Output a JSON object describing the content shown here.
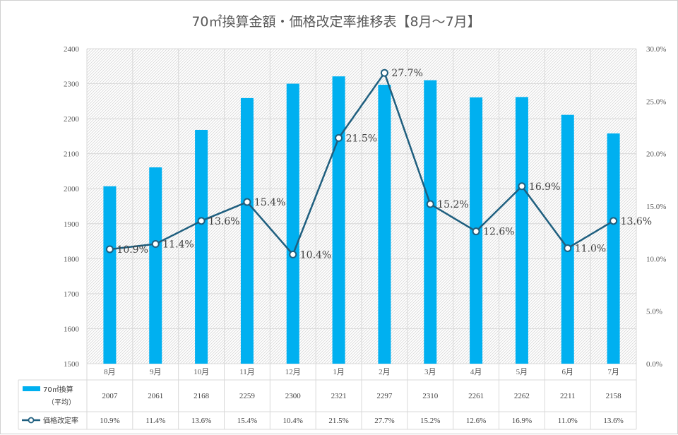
{
  "colors": {
    "bar": "#00B0F0",
    "line": "#1F5F7F",
    "grid": "#d9d9d9",
    "hatch": "#d6d6d6",
    "text": "#595959"
  },
  "chart_data": {
    "type": "bar",
    "title": "70㎡換算金額・価格改定率推移表【8月～7月】",
    "categories": [
      "8月",
      "9月",
      "10月",
      "11月",
      "12月",
      "1月",
      "2月",
      "3月",
      "4月",
      "5月",
      "6月",
      "7月"
    ],
    "y_left": {
      "range": [
        1500,
        2400
      ],
      "ticks": [
        "1500",
        "1600",
        "1700",
        "1800",
        "1900",
        "2000",
        "2100",
        "2200",
        "2300",
        "2400"
      ]
    },
    "y_right": {
      "range": [
        0,
        30
      ],
      "ticks": [
        "0.0%",
        "5.0%",
        "10.0%",
        "15.0%",
        "20.0%",
        "25.0%",
        "30.0%"
      ]
    },
    "series": [
      {
        "name": "70㎡換算",
        "name_sub": "（平均）",
        "kind": "bar",
        "axis": "left",
        "values": [
          2007,
          2061,
          2168,
          2259,
          2300,
          2321,
          2297,
          2310,
          2261,
          2262,
          2211,
          2158
        ],
        "value_labels": [
          "2007",
          "2061",
          "2168",
          "2259",
          "2300",
          "2321",
          "2297",
          "2310",
          "2261",
          "2262",
          "2211",
          "2158"
        ]
      },
      {
        "name": "価格改定率",
        "kind": "line",
        "axis": "right",
        "values": [
          10.9,
          11.4,
          13.6,
          15.4,
          10.4,
          21.5,
          27.7,
          15.2,
          12.6,
          16.9,
          11.0,
          13.6
        ],
        "value_labels": [
          "10.9%",
          "11.4%",
          "13.6%",
          "15.4%",
          "10.4%",
          "21.5%",
          "27.7%",
          "15.2%",
          "12.6%",
          "16.9%",
          "11.0%",
          "13.6%"
        ]
      }
    ],
    "grid": true,
    "legend": "data-table"
  }
}
